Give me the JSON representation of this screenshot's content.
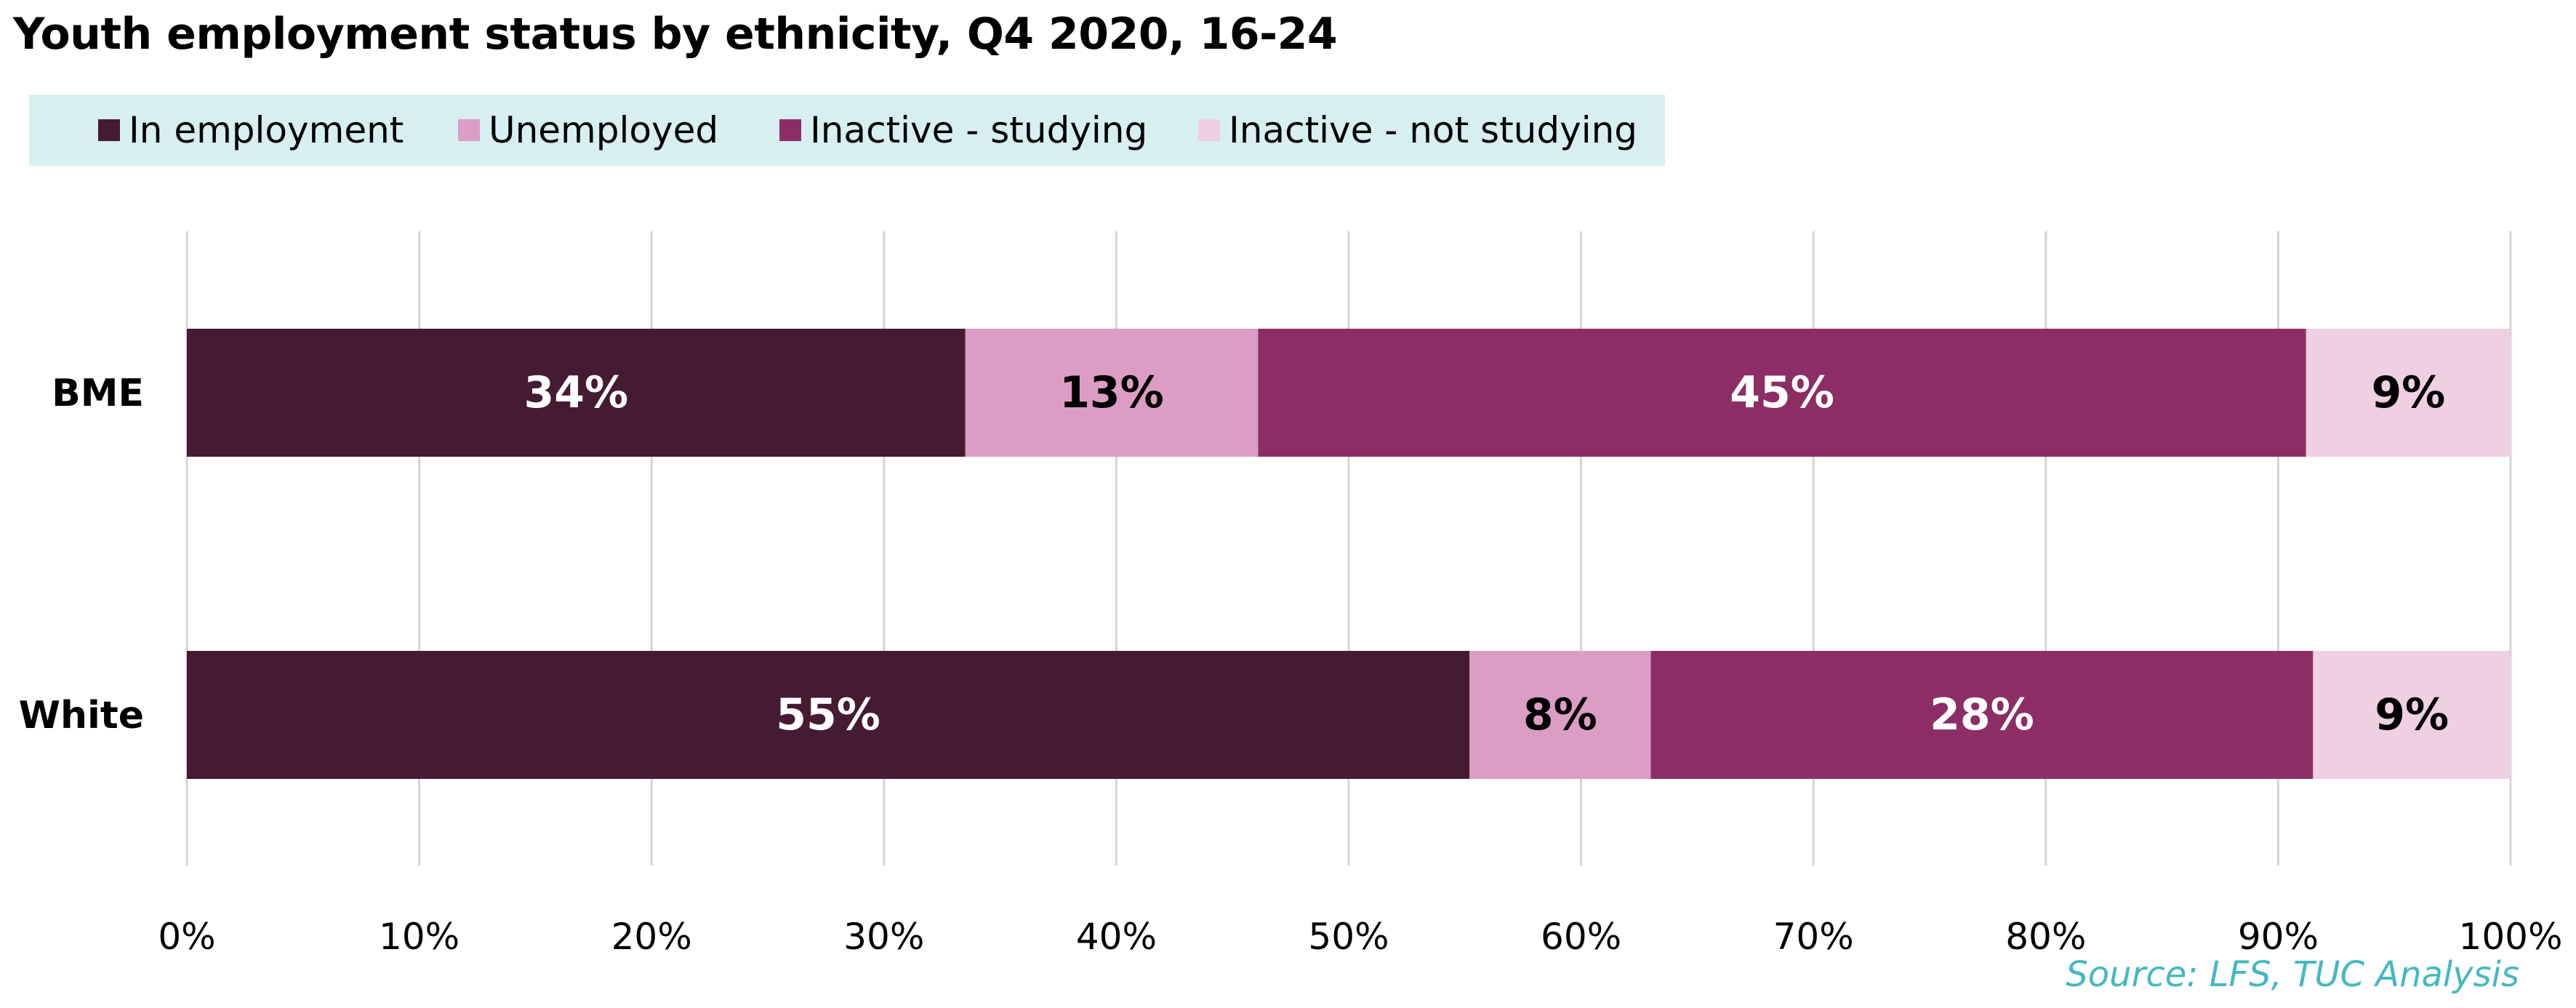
{
  "title": "Youth employment status by ethnicity, Q4 2020, 16-24",
  "source": "Source: LFS, TUC Analysis",
  "colors": {
    "in_employment": "#451a33",
    "unemployed": "#dc9dc4",
    "inactive_studying": "#8c2e65",
    "inactive_not_studying": "#efcfe2",
    "legend_bg": "#d7eff1",
    "grid": "#d4d4d4",
    "source": "#45b8c0"
  },
  "legend": [
    {
      "label": "In employment",
      "color": "#451a33"
    },
    {
      "label": "Unemployed",
      "color": "#dc9dc4"
    },
    {
      "label": "Inactive - studying",
      "color": "#8c2e65"
    },
    {
      "label": "Inactive - not studying",
      "color": "#efcfe2"
    }
  ],
  "chart_data": {
    "type": "bar",
    "orientation": "horizontal",
    "stacked": "percent",
    "categories": [
      "BME",
      "White"
    ],
    "series": [
      {
        "name": "In employment",
        "values": [
          33.5,
          55.2
        ],
        "labels": [
          "34%",
          "55%"
        ]
      },
      {
        "name": "Unemployed",
        "values": [
          12.6,
          7.8
        ],
        "labels": [
          "13%",
          "8%"
        ]
      },
      {
        "name": "Inactive - studying",
        "values": [
          45.1,
          28.5
        ],
        "labels": [
          "45%",
          "28%"
        ]
      },
      {
        "name": "Inactive - not studying",
        "values": [
          8.8,
          8.5
        ],
        "labels": [
          "9%",
          "9%"
        ]
      }
    ],
    "xlim": [
      0,
      100
    ],
    "xticks": [
      "0%",
      "10%",
      "20%",
      "30%",
      "40%",
      "50%",
      "60%",
      "70%",
      "80%",
      "90%",
      "100%"
    ],
    "grid": true,
    "legend_position": "top"
  }
}
